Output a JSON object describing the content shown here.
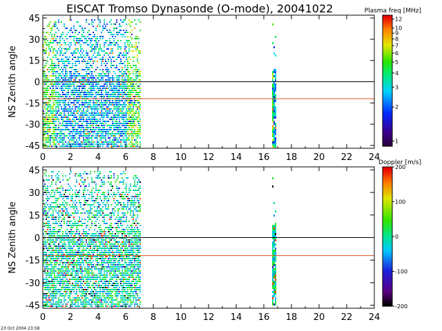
{
  "title": "EISCAT Tromso Dynasonde (O-mode),  20041022",
  "timestamp": "23 Oct 2004 23:58",
  "chart_data": [
    {
      "type": "heatmap",
      "ylabel": "NS Zenith angle",
      "xlim": [
        0,
        24
      ],
      "ylim": [
        -47,
        47
      ],
      "xticks": [
        "0",
        "2",
        "4",
        "6",
        "8",
        "10",
        "12",
        "14",
        "16",
        "18",
        "20",
        "22",
        "24"
      ],
      "yticks": [
        "45",
        "30",
        "15",
        "0",
        "-15",
        "-30",
        "-45"
      ],
      "reference_lines": [
        {
          "y": 0,
          "color": "#000000"
        },
        {
          "y": -12,
          "color": "#e05020"
        }
      ],
      "data_segments_hours": [
        [
          0,
          7.1
        ],
        [
          16.6,
          16.9
        ]
      ],
      "colorbar": {
        "label": "Plasma freq [MHz]",
        "scale": "log",
        "ticks": [
          "12",
          "10",
          "9",
          "8",
          "7",
          "6",
          "5",
          "4",
          "3",
          "2",
          "1"
        ],
        "range": [
          0.9,
          13
        ]
      }
    },
    {
      "type": "heatmap",
      "ylabel": "NS Zenith angle",
      "xlim": [
        0,
        24
      ],
      "ylim": [
        -47,
        47
      ],
      "xticks": [
        "0",
        "2",
        "4",
        "6",
        "8",
        "10",
        "12",
        "14",
        "16",
        "18",
        "20",
        "22",
        "24"
      ],
      "yticks": [
        "45",
        "30",
        "15",
        "0",
        "-15",
        "-30",
        "-45"
      ],
      "reference_lines": [
        {
          "y": 0,
          "color": "#000000"
        },
        {
          "y": -12,
          "color": "#e05020"
        }
      ],
      "data_segments_hours": [
        [
          0,
          7.1
        ],
        [
          16.6,
          16.9
        ]
      ],
      "colorbar": {
        "label": "Doppler [m/s]",
        "scale": "linear",
        "ticks": [
          "200",
          "100",
          "0",
          "-100",
          "-200"
        ],
        "range": [
          -200,
          200
        ]
      }
    }
  ]
}
